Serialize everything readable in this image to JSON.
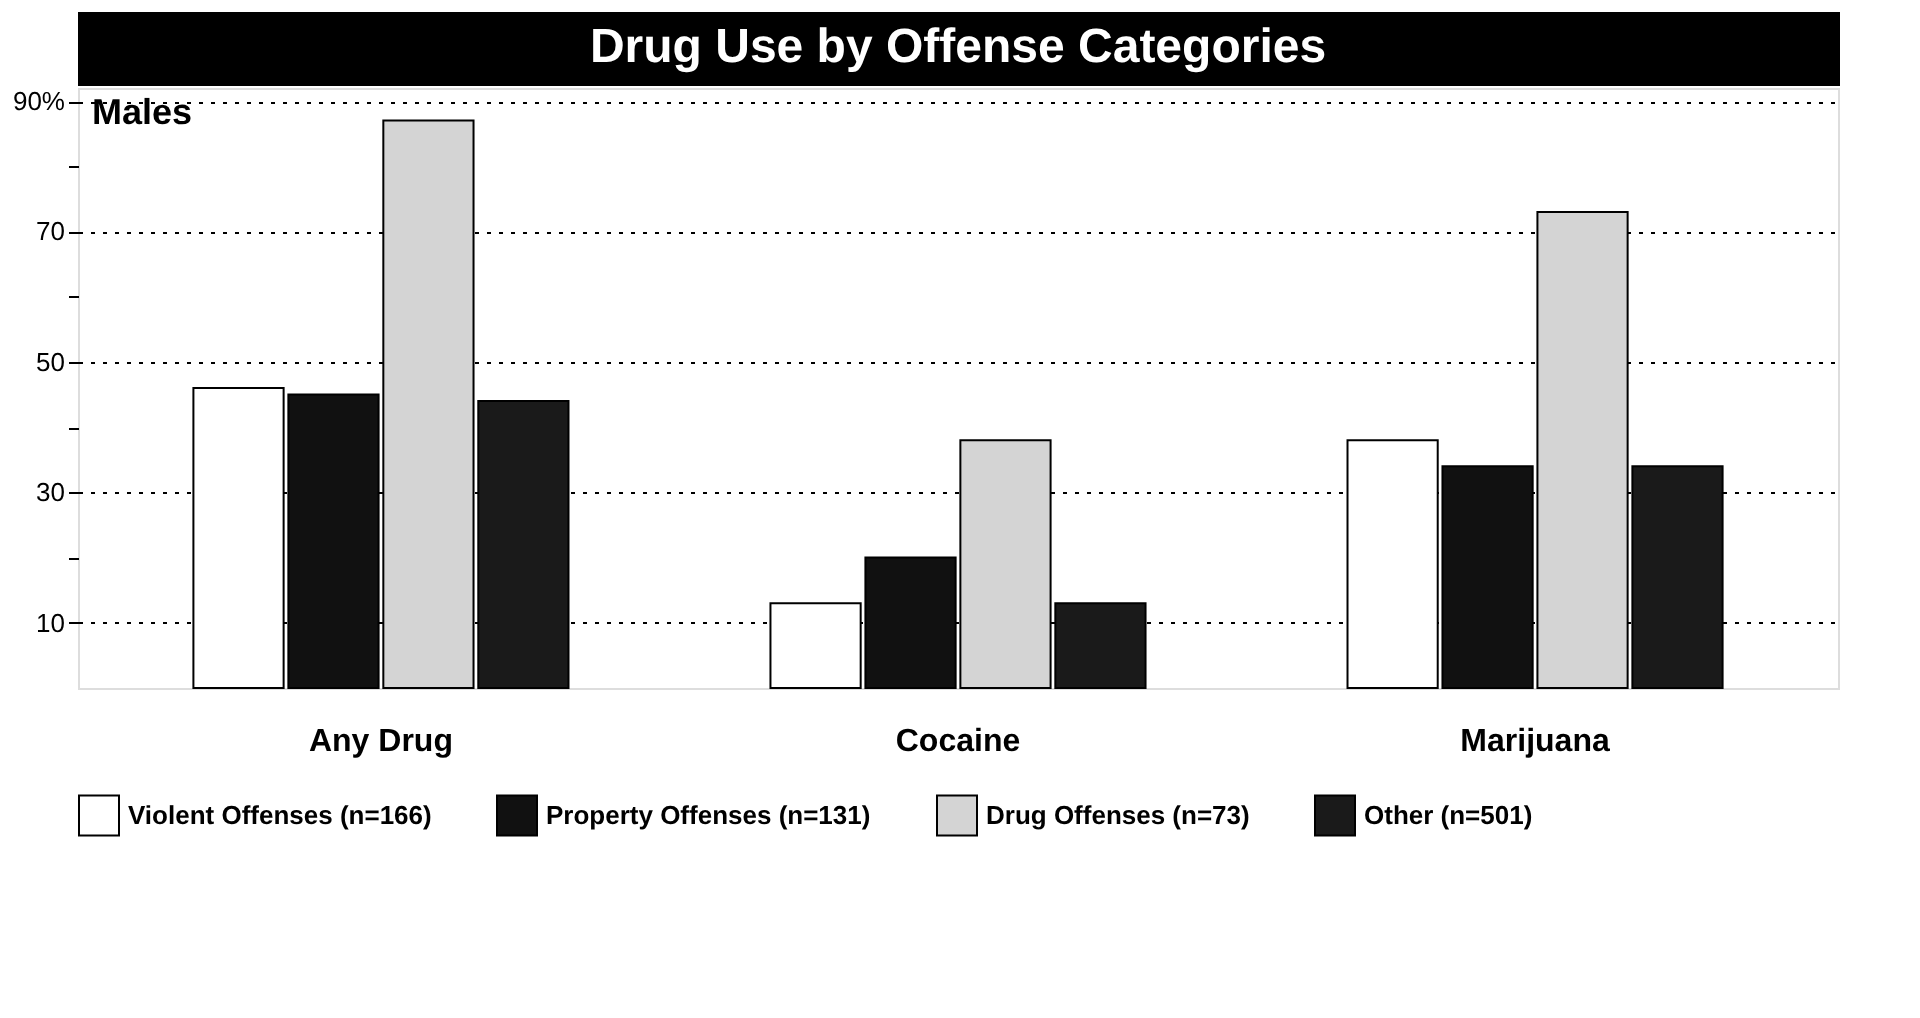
{
  "chart_data": {
    "type": "bar",
    "title": "Drug Use by Offense Categories",
    "subtitle": "Males",
    "categories": [
      "Any Drug",
      "Cocaine",
      "Marijuana"
    ],
    "series": [
      {
        "name": "Violent Offenses (n=166)",
        "color": "#ffffff",
        "values": [
          46,
          13,
          38
        ]
      },
      {
        "name": "Property Offenses (n=131)",
        "color": "#111111",
        "values": [
          45,
          20,
          34
        ]
      },
      {
        "name": "Drug Offenses (n=73)",
        "color": "#d4d4d4",
        "values": [
          87,
          38,
          73
        ]
      },
      {
        "name": "Other (n=501)",
        "color": "#1a1a1a",
        "values": [
          44,
          13,
          34
        ]
      }
    ],
    "ylim": [
      0,
      92
    ],
    "yticks": [
      {
        "value": 10,
        "label": "10"
      },
      {
        "value": 20,
        "label": null
      },
      {
        "value": 30,
        "label": "30"
      },
      {
        "value": 40,
        "label": null
      },
      {
        "value": 50,
        "label": "50"
      },
      {
        "value": 60,
        "label": null
      },
      {
        "value": 70,
        "label": "70"
      },
      {
        "value": 80,
        "label": null
      },
      {
        "value": 90,
        "label": "90%"
      }
    ],
    "grid": "y",
    "legend": "bottom"
  }
}
